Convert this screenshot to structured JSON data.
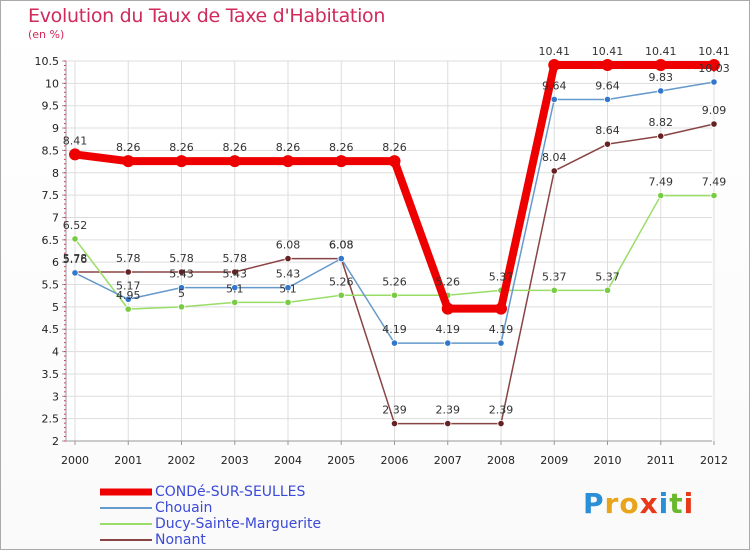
{
  "title": "Evolution du Taux de Taxe d'Habitation",
  "unit": "(en %)",
  "chart_data": {
    "type": "line",
    "title": "Evolution du Taux de Taxe d'Habitation",
    "ylabel": "(en %)",
    "xlabel": "",
    "ylim": [
      2,
      10.5
    ],
    "yticks": [
      2,
      2.5,
      3,
      3.5,
      4,
      4.5,
      5,
      5.5,
      6,
      6.5,
      7,
      7.5,
      8,
      8.5,
      9,
      9.5,
      10,
      10.5
    ],
    "ytick_labels": [
      "2",
      "2.5",
      "3",
      "3.5",
      "4",
      "4.5",
      "5",
      "5.5",
      "6",
      "6.5",
      "7",
      "7.5",
      "8",
      "8.5",
      "9",
      "9.5",
      "10",
      "10.5"
    ],
    "categories": [
      "2000",
      "2001",
      "2002",
      "2003",
      "2004",
      "2005",
      "2006",
      "2007",
      "2008",
      "2009",
      "2010",
      "2011",
      "2012"
    ],
    "grid": true,
    "legend": "bottom-left",
    "series": [
      {
        "name": "CONDé-SUR-SEULLES",
        "color": "#ee0000",
        "point_color": "#ee0000",
        "values": [
          8.41,
          8.26,
          8.26,
          8.26,
          8.26,
          8.26,
          8.26,
          4.96,
          4.96,
          10.41,
          10.41,
          10.41,
          10.41
        ],
        "labels": [
          "8.41",
          "8.26",
          "8.26",
          "8.26",
          "8.26",
          "8.26",
          "8.26",
          "",
          "",
          "10.41",
          "10.41",
          "10.41",
          "10.41"
        ]
      },
      {
        "name": "Chouain",
        "color": "#6699cc",
        "point_color": "#3377cc",
        "values": [
          5.76,
          5.17,
          5.43,
          5.43,
          5.43,
          6.08,
          4.19,
          4.19,
          4.19,
          9.64,
          9.64,
          9.83,
          10.03
        ],
        "labels": [
          "5.76",
          "5.17",
          "5.43",
          "5.43",
          "5.43",
          "6.08",
          "4.19",
          "4.19",
          "4.19",
          "9.64",
          "9.64",
          "9.83",
          "10.03"
        ]
      },
      {
        "name": "Ducy-Sainte-Marguerite",
        "color": "#99dd66",
        "point_color": "#77cc44",
        "values": [
          6.52,
          4.95,
          5,
          5.1,
          5.1,
          5.26,
          5.26,
          5.26,
          5.37,
          5.37,
          5.37,
          7.49,
          7.49
        ],
        "labels": [
          "6.52",
          "4.95",
          "5",
          "5.1",
          "5.1",
          "5.26",
          "5.26",
          "5.26",
          "5.37",
          "5.37",
          "5.37",
          "7.49",
          "7.49"
        ]
      },
      {
        "name": "Nonant",
        "color": "#884444",
        "point_color": "#662222",
        "values": [
          5.78,
          5.78,
          5.78,
          5.78,
          6.08,
          6.08,
          2.39,
          2.39,
          2.39,
          8.04,
          8.64,
          8.82,
          9.09
        ],
        "labels": [
          "5.78",
          "5.78",
          "5.78",
          "5.78",
          "6.08",
          "6.08",
          "2.39",
          "2.39",
          "2.39",
          "8.04",
          "8.64",
          "8.82",
          "9.09"
        ]
      }
    ]
  },
  "logo": {
    "letters": [
      "P",
      "r",
      "o",
      "x",
      "i",
      "t",
      "i"
    ],
    "colors": [
      "#2a8fd6",
      "#e8a51b",
      "#e8a51b",
      "#e83a1b",
      "#2a8fd6",
      "#6ab82c",
      "#e83a1b"
    ]
  }
}
